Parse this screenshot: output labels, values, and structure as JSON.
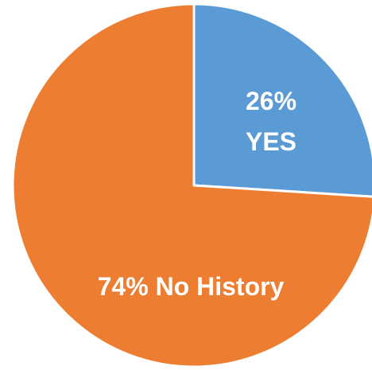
{
  "chart_data": {
    "type": "pie",
    "slices": [
      {
        "label": "YES",
        "value": 26,
        "percent_text": "26%",
        "color": "#5B9BD5"
      },
      {
        "label": "No History",
        "value": 74,
        "percent_text": "74% No History",
        "color": "#ED7D31"
      }
    ],
    "start_angle_deg": 0,
    "direction": "clockwise",
    "legend": "none"
  }
}
